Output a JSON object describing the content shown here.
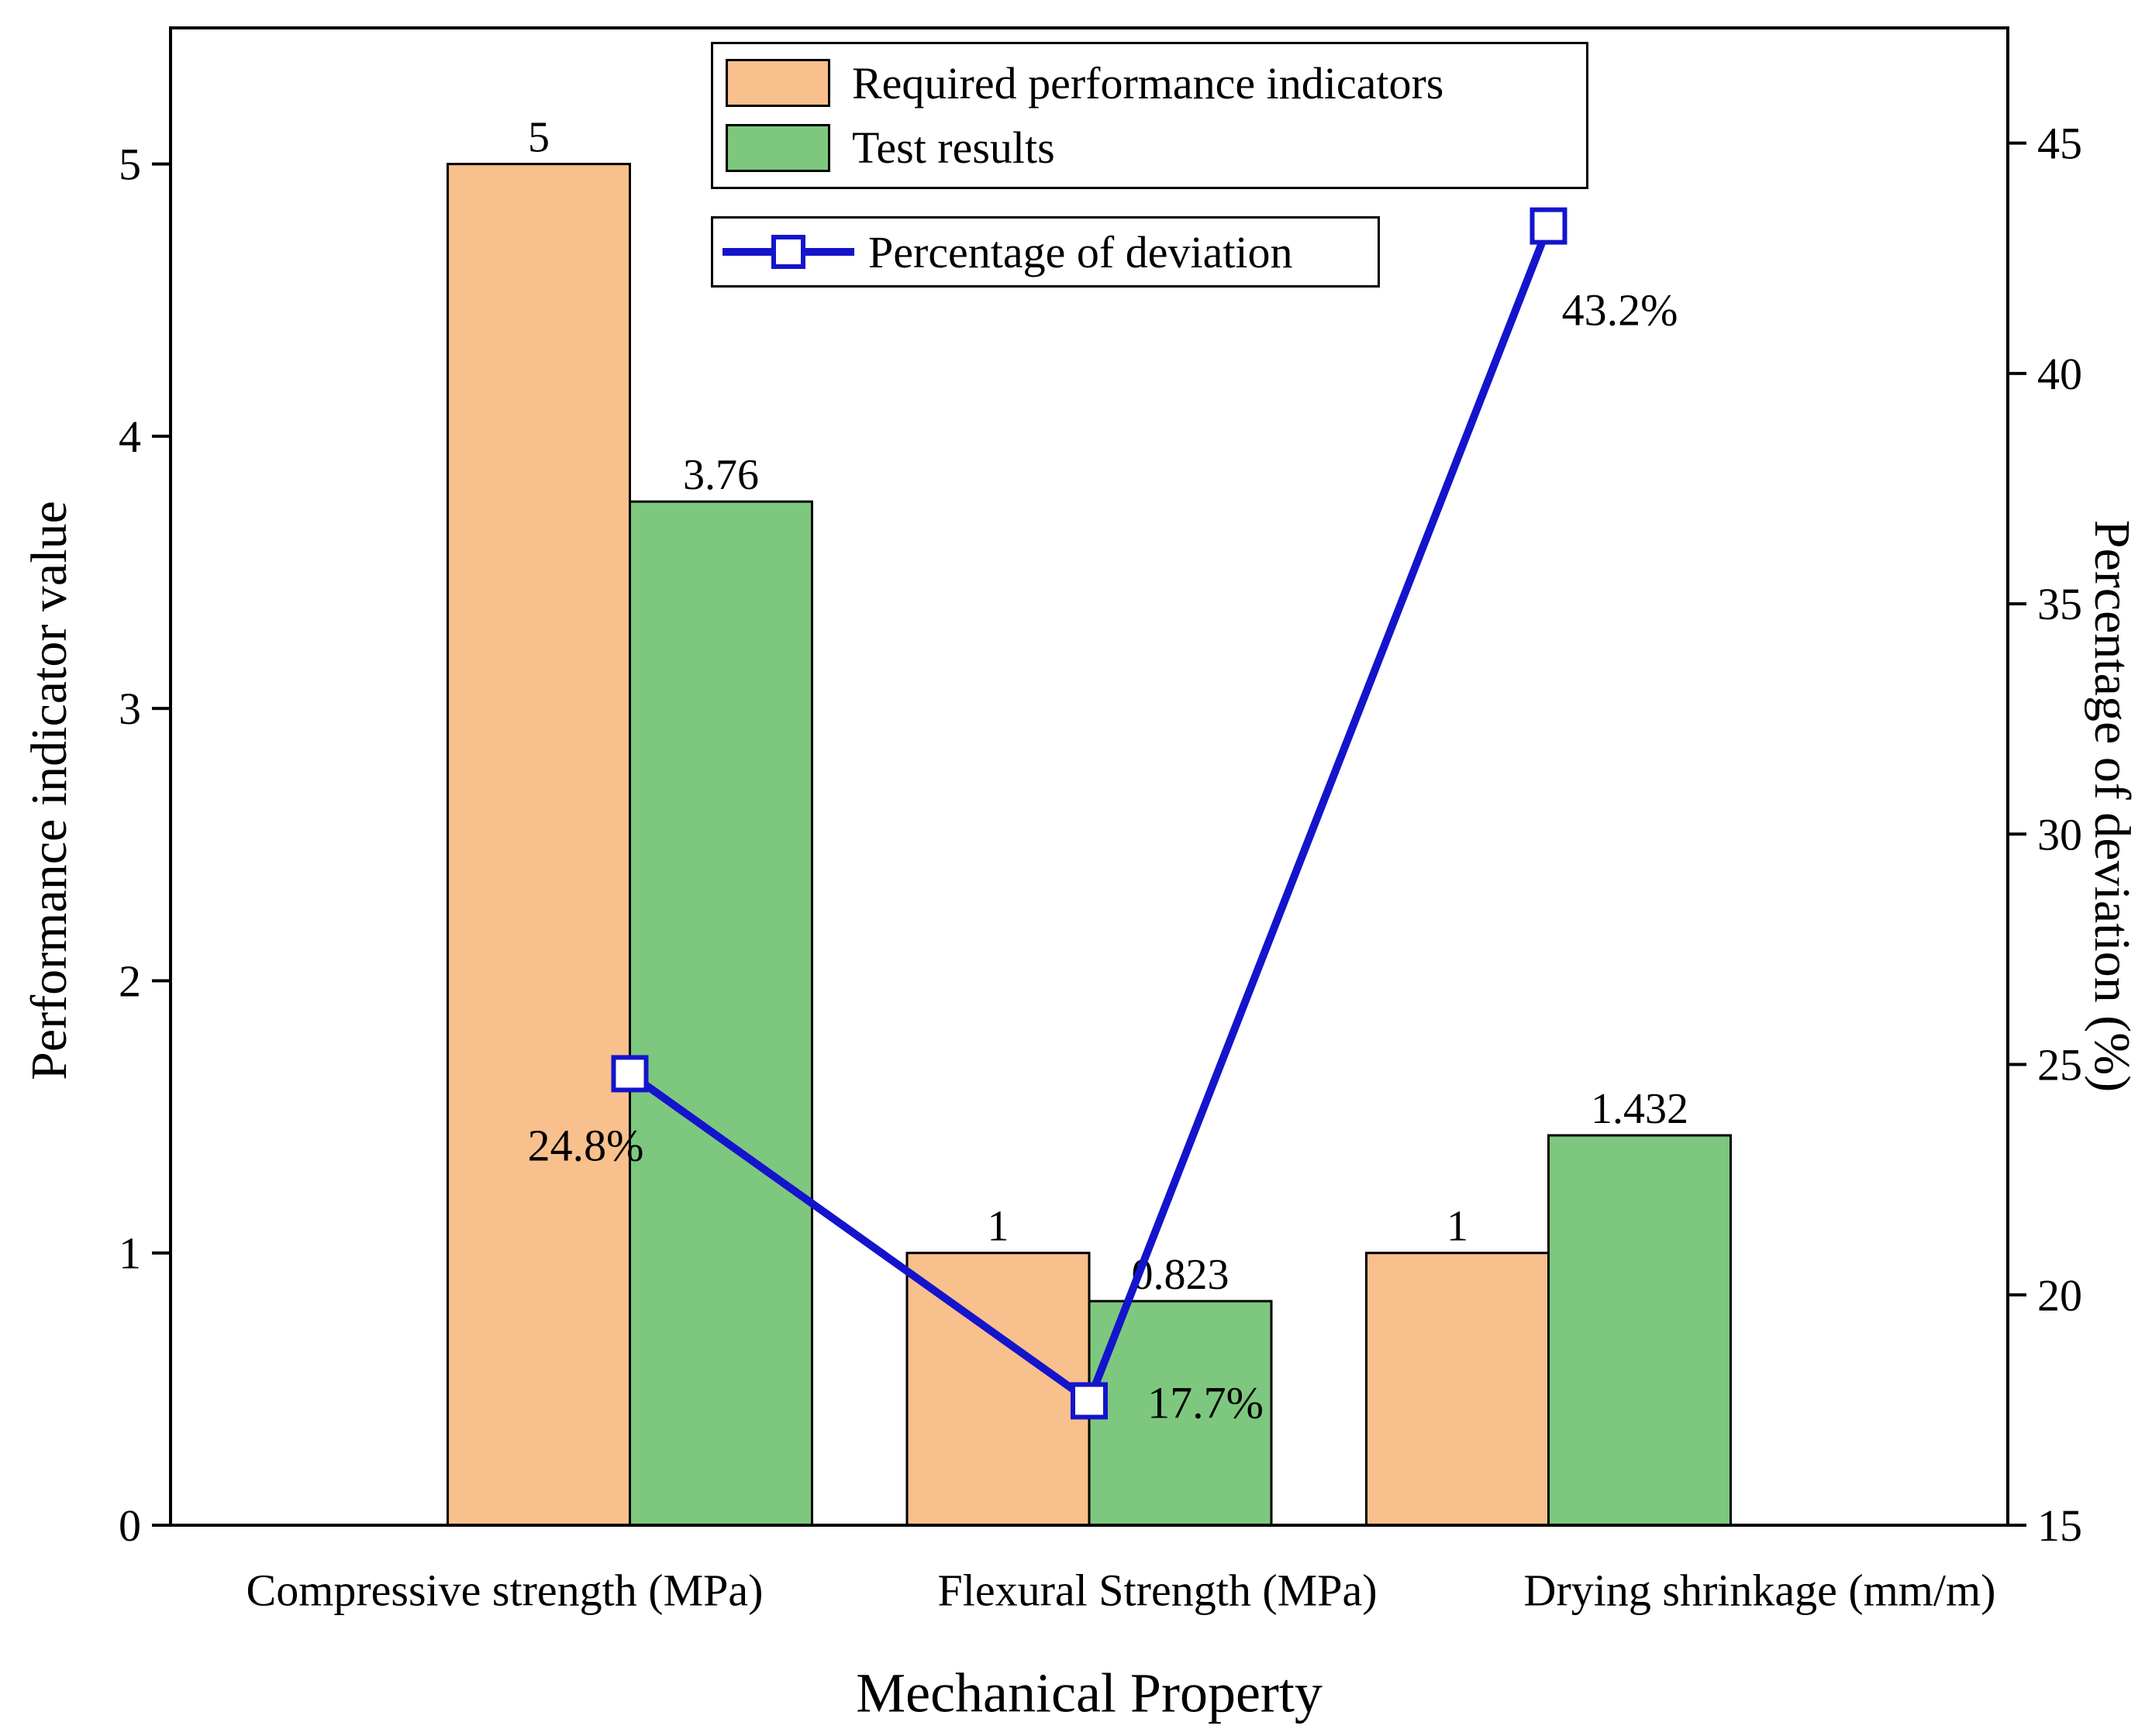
{
  "chart_data": {
    "type": "bar+line",
    "categories": [
      "Compressive strength (MPa)",
      "Flexural Strength (MPa)",
      "Drying shrinkage (mm/m)"
    ],
    "bar_series": [
      {
        "name": "Required performance indicators",
        "color": "#F8C08C",
        "values": [
          5,
          1,
          1
        ],
        "labels": [
          "5",
          "1",
          "1"
        ]
      },
      {
        "name": "Test results",
        "color": "#7DC87E",
        "values": [
          3.76,
          0.823,
          1.432
        ],
        "labels": [
          "3.76",
          "0.823",
          "1.432"
        ]
      }
    ],
    "line_series": {
      "name": "Percentage of deviation",
      "color": "#1414CC",
      "values": [
        24.8,
        17.7,
        43.2
      ],
      "labels": [
        "24.8%",
        "17.7%",
        "43.2%"
      ]
    },
    "left_axis": {
      "label": "Performance indicator value",
      "min": 0,
      "max": 5.5,
      "ticks": [
        0,
        1,
        2,
        3,
        4,
        5
      ]
    },
    "right_axis": {
      "label": "Percentage of deviation (%)",
      "min": 15,
      "max": 47.5,
      "ticks": [
        15,
        20,
        25,
        30,
        35,
        40,
        45
      ]
    },
    "x_axis": {
      "label": "Mechanical Property"
    },
    "grid": false,
    "legend_position": "top-center"
  }
}
